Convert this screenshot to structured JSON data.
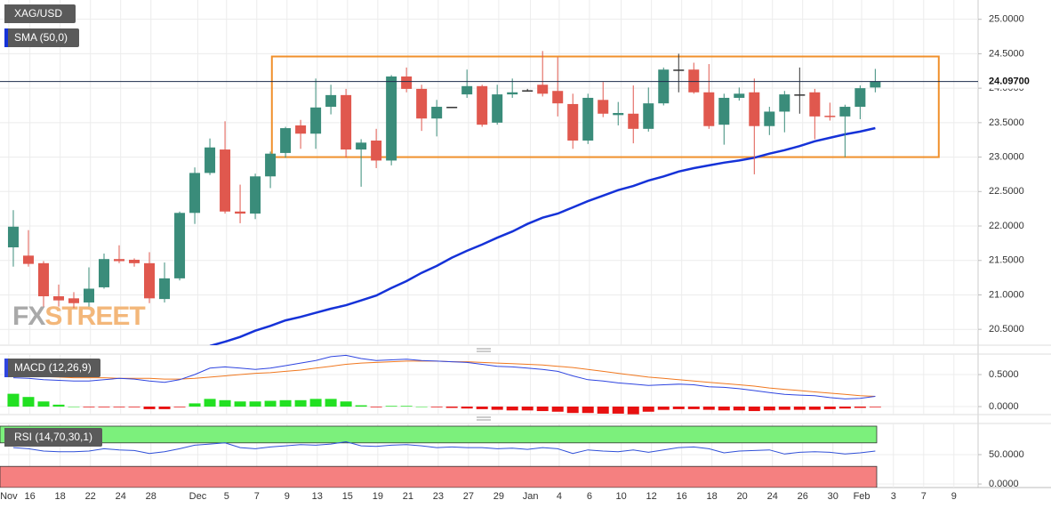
{
  "chart_data": [
    {
      "type": "candlestick",
      "title": "XAG/USD",
      "open": [
        21.69,
        21.57,
        21.46,
        20.98,
        20.95,
        20.89,
        21.11,
        21.52,
        21.51,
        21.46,
        20.94,
        21.24,
        22.19,
        22.77,
        23.11,
        22.21,
        22.18,
        22.72,
        23.06,
        23.46,
        23.34,
        23.73,
        23.9,
        23.11,
        23.24,
        22.95,
        24.17,
        23.99,
        23.56,
        23.73,
        23.91,
        24.03,
        23.5,
        23.91,
        23.97,
        24.05,
        23.96,
        23.77,
        23.24,
        23.83,
        23.61,
        23.63,
        23.41,
        23.78,
        24.27,
        24.27,
        23.94,
        23.47,
        23.86,
        23.94,
        23.45,
        23.66,
        23.91,
        23.94,
        23.6,
        23.59,
        23.73,
        24.01
      ],
      "high": [
        22.23,
        21.94,
        21.49,
        21.15,
        21.04,
        21.4,
        21.6,
        21.72,
        21.53,
        21.62,
        21.47,
        22.21,
        22.85,
        23.27,
        23.52,
        22.6,
        22.76,
        23.08,
        23.44,
        23.54,
        24.14,
        24.05,
        23.99,
        23.26,
        23.41,
        24.19,
        24.3,
        24.05,
        23.83,
        23.73,
        24.27,
        24.05,
        24.05,
        24.14,
        23.99,
        24.54,
        24.45,
        23.92,
        23.92,
        24.09,
        23.8,
        24.04,
        24.01,
        24.3,
        24.5,
        24.37,
        24.35,
        23.92,
        24.01,
        24.14,
        23.73,
        23.96,
        24.3,
        23.99,
        23.79,
        23.76,
        24.04,
        24.28
      ],
      "low": [
        21.41,
        21.41,
        20.83,
        20.83,
        20.81,
        20.83,
        21.09,
        21.46,
        21.41,
        20.88,
        20.89,
        21.21,
        22.03,
        22.74,
        22.18,
        22.04,
        22.1,
        22.55,
        22.99,
        23.12,
        23.12,
        23.62,
        22.99,
        22.57,
        22.84,
        22.88,
        23.94,
        23.38,
        23.3,
        23.73,
        23.86,
        23.44,
        23.47,
        23.86,
        23.95,
        23.88,
        23.59,
        23.12,
        23.19,
        23.58,
        23.46,
        23.2,
        23.37,
        23.75,
        23.94,
        23.92,
        23.41,
        23.18,
        23.82,
        22.75,
        23.32,
        23.36,
        23.63,
        23.26,
        23.53,
        23.0,
        23.55,
        23.94
      ],
      "close": [
        21.99,
        21.45,
        20.98,
        20.92,
        20.88,
        21.09,
        21.52,
        21.49,
        21.46,
        20.95,
        21.24,
        22.19,
        22.77,
        23.14,
        22.21,
        22.18,
        22.72,
        23.05,
        23.42,
        23.34,
        23.72,
        23.9,
        23.11,
        23.21,
        22.95,
        24.17,
        23.99,
        23.56,
        23.73,
        23.73,
        24.03,
        23.47,
        23.91,
        23.94,
        23.97,
        23.92,
        23.78,
        23.24,
        23.86,
        23.63,
        23.64,
        23.41,
        23.78,
        24.27,
        24.27,
        23.94,
        23.45,
        23.86,
        23.92,
        23.45,
        23.66,
        23.91,
        23.91,
        23.59,
        23.59,
        23.73,
        24.0,
        24.1
      ],
      "colors": {
        "up": "#3a8c7a",
        "down": "#e0584e",
        "flat": "#333333"
      },
      "overlays": [
        {
          "name": "SMA (50,0)",
          "color": "#1532d8",
          "values": [
            null,
            null,
            null,
            null,
            null,
            null,
            null,
            null,
            null,
            null,
            null,
            null,
            null,
            20.26,
            20.32,
            20.39,
            20.48,
            20.55,
            20.63,
            20.68,
            20.74,
            20.8,
            20.85,
            20.92,
            20.99,
            21.1,
            21.2,
            21.32,
            21.42,
            21.54,
            21.64,
            21.73,
            21.83,
            21.92,
            22.03,
            22.12,
            22.18,
            22.27,
            22.36,
            22.44,
            22.52,
            22.58,
            22.66,
            22.72,
            22.79,
            22.84,
            22.88,
            22.92,
            22.95,
            22.99,
            23.05,
            23.1,
            23.16,
            23.23,
            23.28,
            23.33,
            23.37,
            23.42
          ]
        }
      ],
      "last_price": {
        "value": 24.097,
        "label": "24.09700"
      },
      "range_box": {
        "x": [
          17.1,
          61.2
        ],
        "y": [
          23.0,
          24.46
        ],
        "color": "#f0902c"
      },
      "watermark": {
        "fx": "FX",
        "street": "STREET"
      },
      "ylim": [
        20.27,
        25.28
      ],
      "yticks": [
        {
          "value": 20.5,
          "label": "20.5000"
        },
        {
          "value": 21,
          "label": "21.0000"
        },
        {
          "value": 21.5,
          "label": "21.5000"
        },
        {
          "value": 22,
          "label": "22.0000"
        },
        {
          "value": 22.5,
          "label": "22.5000"
        },
        {
          "value": 23,
          "label": "23.0000"
        },
        {
          "value": 23.5,
          "label": "23.5000"
        },
        {
          "value": 24,
          "label": "24.0000"
        },
        {
          "value": 24.5,
          "label": "24.5000"
        },
        {
          "value": 25,
          "label": "25.0000"
        }
      ],
      "grid": true
    },
    {
      "type": "macd",
      "title": "MACD (12,26,9)",
      "macd": [
        0.45,
        0.44,
        0.42,
        0.41,
        0.4,
        0.4,
        0.42,
        0.44,
        0.43,
        0.4,
        0.38,
        0.42,
        0.5,
        0.6,
        0.62,
        0.6,
        0.58,
        0.6,
        0.64,
        0.68,
        0.72,
        0.78,
        0.8,
        0.75,
        0.72,
        0.73,
        0.74,
        0.72,
        0.71,
        0.7,
        0.69,
        0.66,
        0.63,
        0.62,
        0.6,
        0.58,
        0.55,
        0.48,
        0.42,
        0.4,
        0.37,
        0.35,
        0.33,
        0.34,
        0.35,
        0.34,
        0.31,
        0.3,
        0.28,
        0.25,
        0.22,
        0.19,
        0.18,
        0.17,
        0.14,
        0.12,
        0.13,
        0.16
      ],
      "signal": [
        0.48,
        0.47,
        0.47,
        0.46,
        0.45,
        0.45,
        0.45,
        0.44,
        0.44,
        0.44,
        0.43,
        0.43,
        0.44,
        0.46,
        0.48,
        0.5,
        0.52,
        0.53,
        0.55,
        0.57,
        0.6,
        0.63,
        0.66,
        0.68,
        0.69,
        0.7,
        0.71,
        0.71,
        0.71,
        0.7,
        0.7,
        0.69,
        0.68,
        0.67,
        0.66,
        0.65,
        0.63,
        0.61,
        0.58,
        0.55,
        0.52,
        0.49,
        0.46,
        0.44,
        0.42,
        0.4,
        0.38,
        0.36,
        0.34,
        0.32,
        0.29,
        0.27,
        0.25,
        0.23,
        0.21,
        0.19,
        0.17,
        0.16
      ],
      "histogram": [
        0.2,
        0.15,
        0.08,
        0.03,
        0.0,
        -0.01,
        -0.01,
        -0.01,
        -0.01,
        -0.04,
        -0.04,
        -0.01,
        0.05,
        0.12,
        0.1,
        0.08,
        0.08,
        0.09,
        0.1,
        0.1,
        0.12,
        0.12,
        0.08,
        0.02,
        -0.01,
        0.01,
        0.01,
        0.0,
        -0.01,
        -0.02,
        -0.03,
        -0.04,
        -0.05,
        -0.06,
        -0.06,
        -0.07,
        -0.08,
        -0.1,
        -0.1,
        -0.11,
        -0.11,
        -0.12,
        -0.08,
        -0.05,
        -0.04,
        -0.04,
        -0.05,
        -0.06,
        -0.06,
        -0.07,
        -0.06,
        -0.05,
        -0.05,
        -0.05,
        -0.04,
        -0.03,
        -0.02,
        -0.01
      ],
      "colors": {
        "macd": "#2f45e0",
        "signal": "#f07820",
        "up": "#22e022",
        "down": "#e81010"
      },
      "ylim": [
        -0.125,
        0.82
      ],
      "yticks": [
        {
          "value": 0,
          "label": "0.0000"
        },
        {
          "value": 0.5,
          "label": "0.5000"
        }
      ],
      "grid": true
    },
    {
      "type": "rsi",
      "title": "RSI (14,70,30,1)",
      "values": [
        62,
        60,
        56,
        55,
        55,
        56,
        60,
        58,
        57,
        52,
        55,
        60,
        66,
        68,
        70,
        62,
        60,
        63,
        65,
        67,
        66,
        68,
        72,
        65,
        64,
        66,
        67,
        65,
        62,
        63,
        62,
        62,
        60,
        61,
        59,
        62,
        60,
        52,
        58,
        56,
        55,
        58,
        54,
        58,
        62,
        63,
        60,
        53,
        56,
        57,
        58,
        51,
        54,
        55,
        54,
        51,
        53,
        56
      ],
      "color": "#3050d8",
      "overbought": 70,
      "oversold": 30,
      "band_colors": {
        "overbought": "#7cf07c",
        "oversold": "#f58080"
      },
      "ylim": [
        -6,
        103
      ],
      "yticks": [
        {
          "value": 0,
          "label": "0.0000"
        },
        {
          "value": 50,
          "label": "50.0000"
        }
      ],
      "xlim": [
        -0.88,
        63.8
      ],
      "xticks": [
        {
          "value": -0.3,
          "label": "Nov"
        },
        {
          "value": 1.1,
          "label": "16"
        },
        {
          "value": 3.1,
          "label": "18"
        },
        {
          "value": 5.1,
          "label": "22"
        },
        {
          "value": 7.1,
          "label": "24"
        },
        {
          "value": 9.1,
          "label": "28"
        },
        {
          "value": 12.2,
          "label": "Dec"
        },
        {
          "value": 14.1,
          "label": "5"
        },
        {
          "value": 16.1,
          "label": "7"
        },
        {
          "value": 18.1,
          "label": "9"
        },
        {
          "value": 20.1,
          "label": "13"
        },
        {
          "value": 22.1,
          "label": "15"
        },
        {
          "value": 24.1,
          "label": "19"
        },
        {
          "value": 26.1,
          "label": "21"
        },
        {
          "value": 28.1,
          "label": "23"
        },
        {
          "value": 30.1,
          "label": "27"
        },
        {
          "value": 32.1,
          "label": "29"
        },
        {
          "value": 34.2,
          "label": "Jan"
        },
        {
          "value": 36.1,
          "label": "4"
        },
        {
          "value": 38.1,
          "label": "6"
        },
        {
          "value": 40.2,
          "label": "10"
        },
        {
          "value": 42.2,
          "label": "12"
        },
        {
          "value": 44.2,
          "label": "16"
        },
        {
          "value": 46.2,
          "label": "18"
        },
        {
          "value": 48.2,
          "label": "20"
        },
        {
          "value": 50.2,
          "label": "24"
        },
        {
          "value": 52.2,
          "label": "26"
        },
        {
          "value": 54.2,
          "label": "30"
        },
        {
          "value": 56.1,
          "label": "Feb"
        },
        {
          "value": 58.2,
          "label": "3"
        },
        {
          "value": 60.2,
          "label": "7"
        },
        {
          "value": 62.2,
          "label": "9"
        }
      ],
      "grid": true
    }
  ]
}
